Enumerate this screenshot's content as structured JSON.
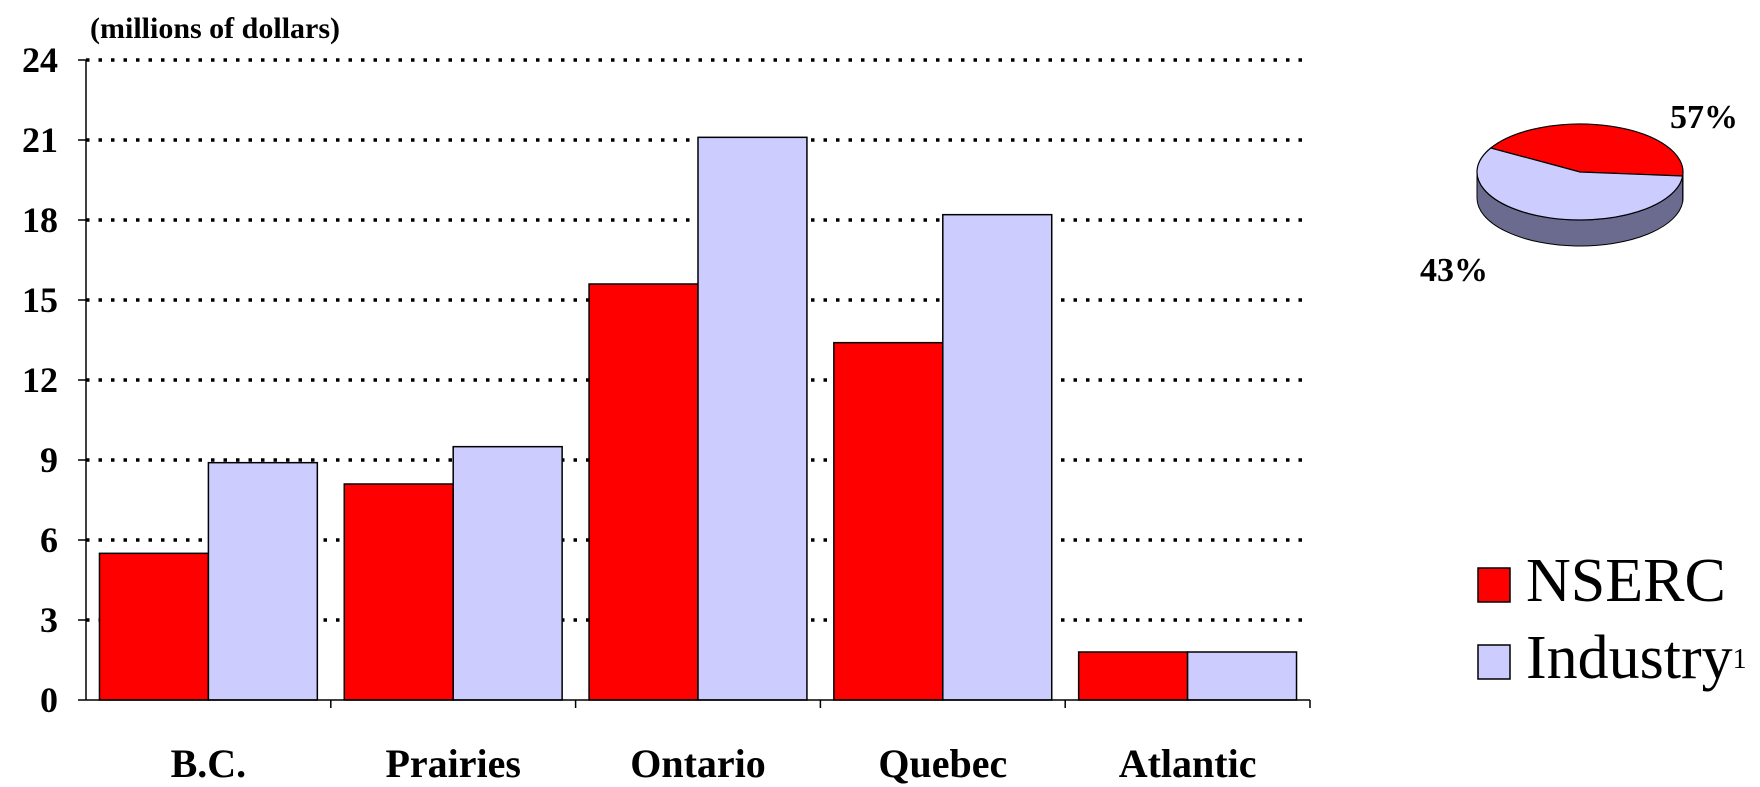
{
  "chart_data": {
    "type": "bar",
    "unit_label": "(millions of dollars)",
    "categories": [
      "B.C.",
      "Prairies",
      "Ontario",
      "Quebec",
      "Atlantic"
    ],
    "series": [
      {
        "name": "NSERC",
        "values": [
          5.5,
          8.1,
          15.6,
          13.4,
          1.8
        ],
        "color": "#ff0000"
      },
      {
        "name": "Industry",
        "name_superscript": "1",
        "values": [
          8.9,
          9.5,
          21.1,
          18.2,
          1.8
        ],
        "color": "#ccccff"
      }
    ],
    "ylim": [
      0,
      24
    ],
    "yticks": [
      "0",
      "3",
      "6",
      "9",
      "12",
      "15",
      "18",
      "21",
      "24"
    ],
    "grid": true,
    "grid_style": "dotted",
    "legend_position": "bottom-right"
  },
  "pie": {
    "type": "pie",
    "slices": [
      {
        "label": "43%",
        "value": 43,
        "color": "#ff0000",
        "side_color": "#8b0000"
      },
      {
        "label": "57%",
        "value": 57,
        "color": "#ccccff",
        "side_color": "#6b6b8f"
      }
    ]
  }
}
